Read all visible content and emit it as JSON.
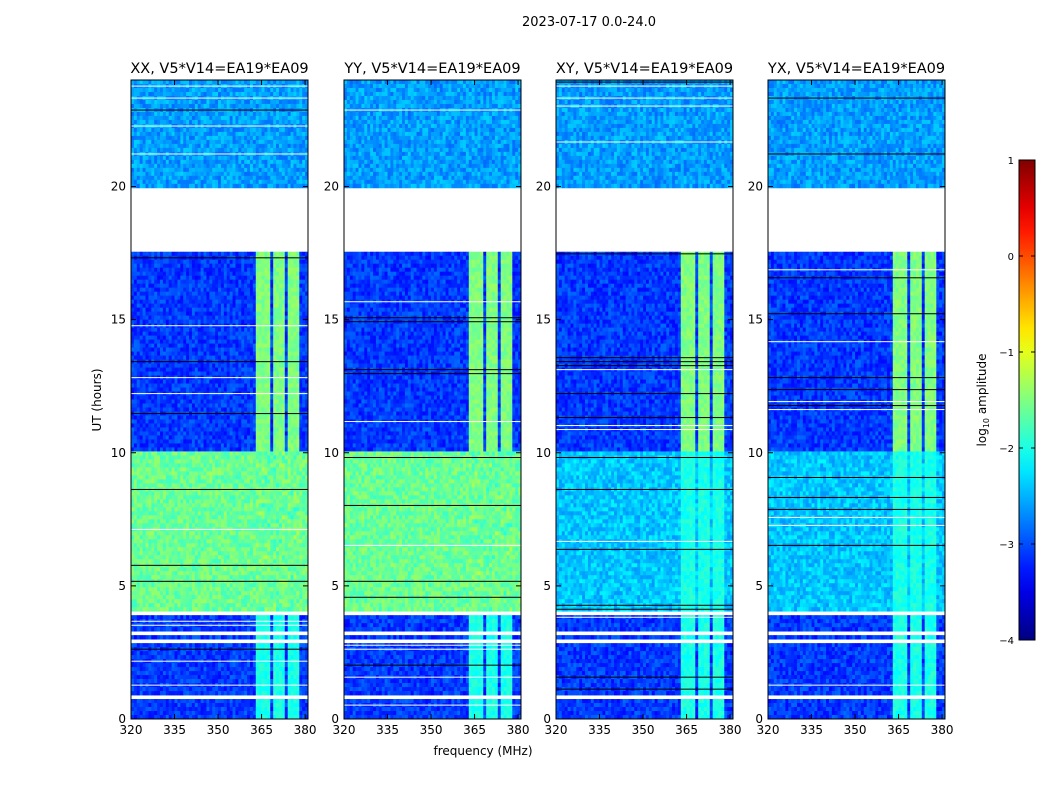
{
  "figure_title": "2023-07-17 0.0-24.0",
  "chart_data": {
    "type": "heatmap",
    "title": "2023-07-17 0.0-24.0",
    "xlabel": "frequency (MHz)",
    "ylabel": "UT (hours)",
    "xlim": [
      320,
      381
    ],
    "ylim": [
      0,
      24
    ],
    "x_ticks": [
      320,
      335,
      350,
      365,
      380
    ],
    "y_ticks": [
      0,
      5,
      10,
      15,
      20
    ],
    "panels": [
      {
        "title": "XX, V5*V14=EA19*EA09",
        "pol": "XX",
        "parallel_hand": true
      },
      {
        "title": "YY, V5*V14=EA19*EA09",
        "pol": "YY",
        "parallel_hand": true
      },
      {
        "title": "XY, V5*V14=EA19*EA09",
        "pol": "XY",
        "parallel_hand": false
      },
      {
        "title": "YX, V5*V14=EA19*EA09",
        "pol": "YX",
        "parallel_hand": false
      }
    ],
    "colorbar": {
      "label": "log10 amplitude",
      "label_main": "log",
      "label_sub": "10",
      "label_rest": " amplitude",
      "min": -4,
      "max": 1,
      "ticks": [
        1,
        0,
        -1,
        -2,
        -3,
        -4
      ],
      "tick_labels": [
        "1",
        "0",
        "−1",
        "−2",
        "−3",
        "−4"
      ],
      "colormap": "jet"
    },
    "flagged_ut_ranges": [
      [
        17.5,
        20.0
      ],
      [
        3.85,
        4.05
      ],
      [
        3.1,
        3.25
      ],
      [
        2.85,
        2.95
      ],
      [
        0.75,
        0.85
      ],
      [
        1.45,
        1.52
      ]
    ],
    "rfi_channel_bands_mhz": [
      [
        363.5,
        368.5
      ],
      [
        369.5,
        373.5
      ],
      [
        374.5,
        378.5
      ]
    ]
  }
}
